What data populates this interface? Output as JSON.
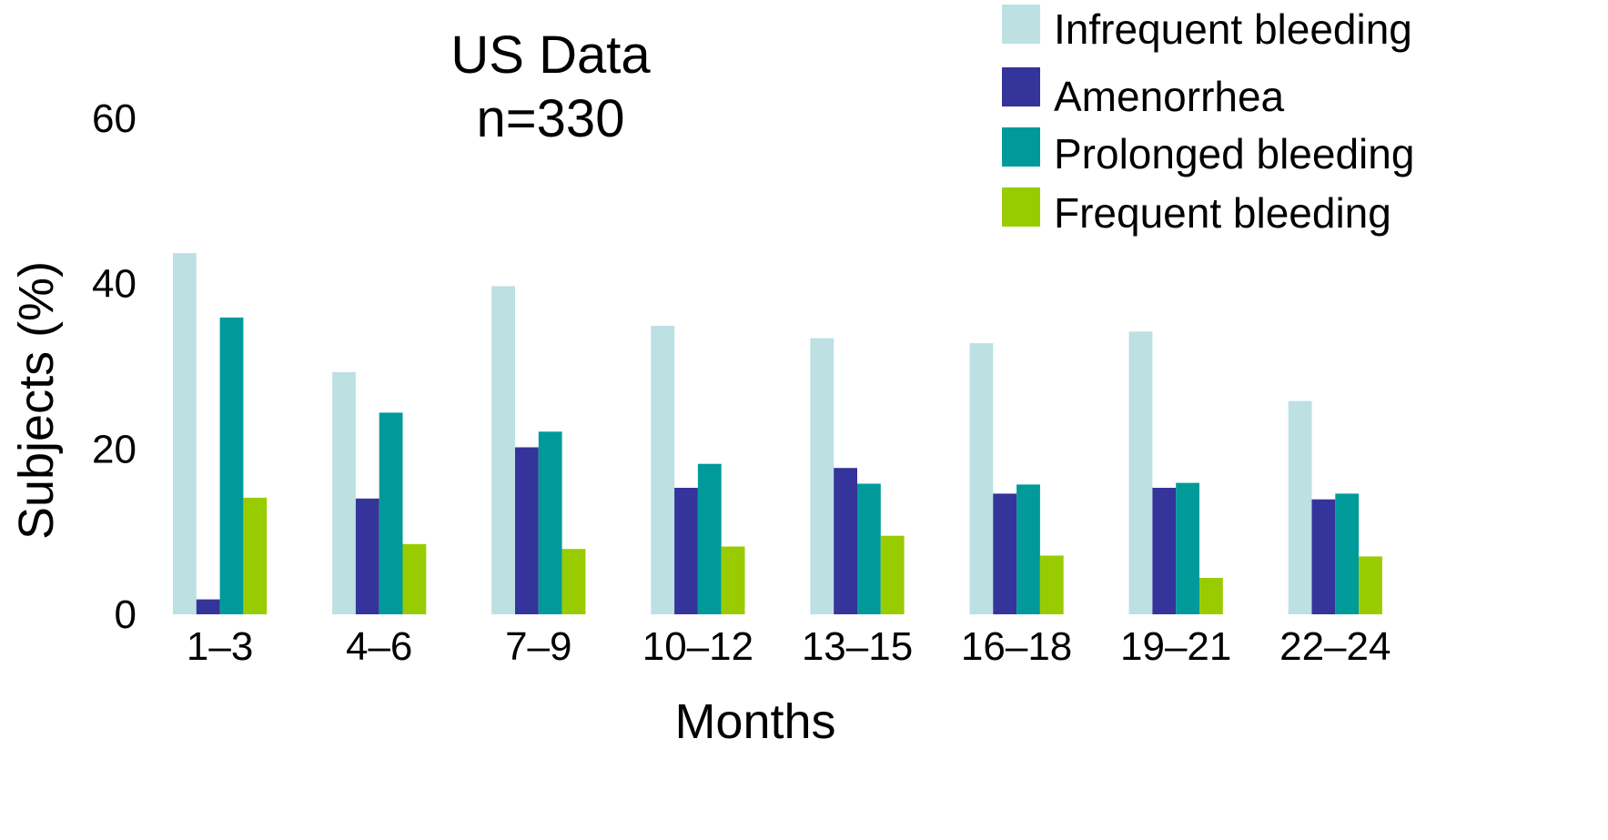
{
  "chart_data": {
    "type": "bar",
    "title": "US Data",
    "subtitle": "n=330",
    "xlabel": "Months",
    "ylabel": "Subjects (%)",
    "ylim": [
      0,
      60
    ],
    "yticks": [
      0,
      20,
      40,
      60
    ],
    "grid": false,
    "legend_position": "top-right",
    "categories": [
      "1–3",
      "4–6",
      "7–9",
      "10–12",
      "13–15",
      "16–18",
      "19–21",
      "22–24"
    ],
    "series": [
      {
        "name": "Infrequent bleeding",
        "color": "#bde0e3",
        "values": [
          43.7,
          29.3,
          39.7,
          34.9,
          33.4,
          32.8,
          34.2,
          25.8
        ]
      },
      {
        "name": "Amenorrhea",
        "color": "#35349a",
        "values": [
          1.8,
          14.0,
          20.2,
          15.3,
          17.7,
          14.6,
          15.3,
          13.9
        ]
      },
      {
        "name": "Prolonged bleeding",
        "color": "#009a9a",
        "values": [
          35.9,
          24.4,
          22.1,
          18.2,
          15.8,
          15.7,
          15.9,
          14.6
        ]
      },
      {
        "name": "Frequent bleeding",
        "color": "#99cc00",
        "values": [
          14.1,
          8.5,
          7.9,
          8.2,
          9.5,
          7.1,
          4.4,
          7.0
        ]
      }
    ]
  }
}
